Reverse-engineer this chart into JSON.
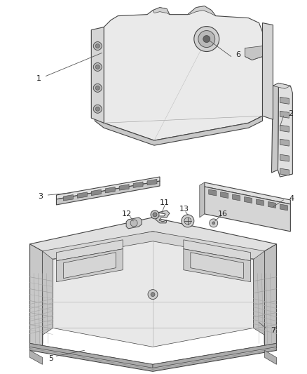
{
  "bg_color": "#ffffff",
  "line_color": "#444444",
  "label_color": "#222222",
  "figsize": [
    4.38,
    5.33
  ],
  "dpi": 100,
  "face_light": "#f0f0f0",
  "face_mid": "#d8d8d8",
  "face_dark": "#c0c0c0",
  "face_darker": "#a8a8a8"
}
